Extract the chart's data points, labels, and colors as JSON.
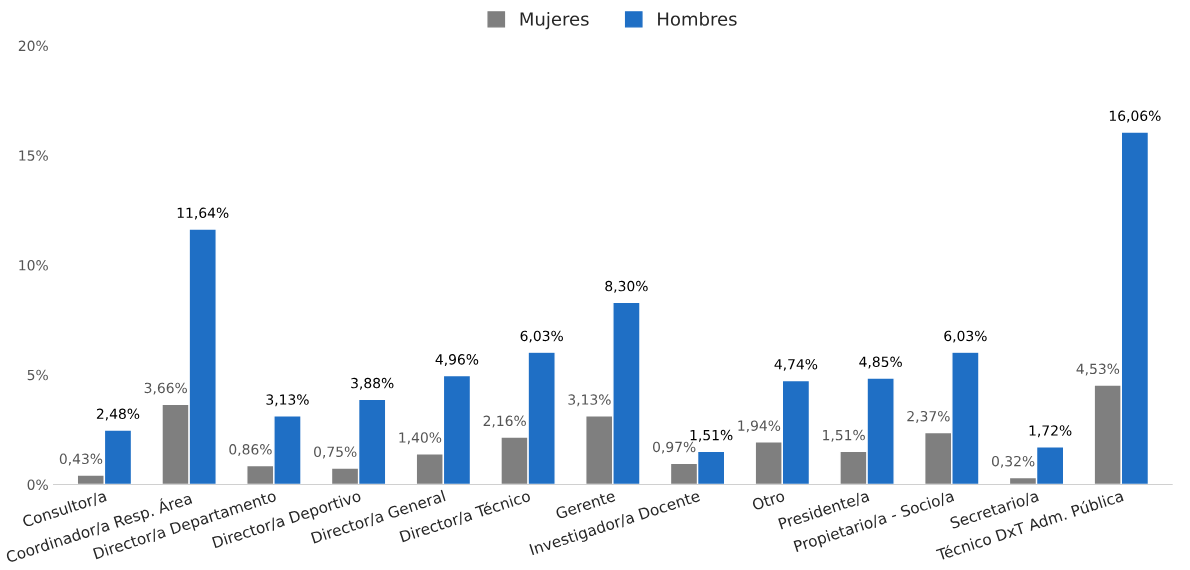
{
  "chart_data": {
    "type": "bar",
    "categories": [
      "Consultor/a",
      "Coordinador/a Resp. Área",
      "Director/a Departamento",
      "Director/a Deportivo",
      "Director/a General",
      "Director/a Técnico",
      "Gerente",
      "Investigador/a Docente",
      "Otro",
      "Presidente/a",
      "Propietario/a - Socio/a",
      "Secretario/a",
      "Técnico DxT Adm. Pública"
    ],
    "series": [
      {
        "name": "Mujeres",
        "color": "#7f7f7f",
        "values": [
          0.43,
          3.66,
          0.86,
          0.75,
          1.4,
          2.16,
          3.13,
          0.97,
          1.94,
          1.51,
          2.37,
          0.32,
          4.53
        ],
        "value_labels": [
          "0,43%",
          "3,66%",
          "0,86%",
          "0,75%",
          "1,40%",
          "2,16%",
          "3,13%",
          "0,97%",
          "1,94%",
          "1,51%",
          "2,37%",
          "0,32%",
          "4,53%"
        ]
      },
      {
        "name": "Hombres",
        "color": "#1f6fc5",
        "values": [
          2.48,
          11.64,
          3.13,
          3.88,
          4.96,
          6.03,
          8.3,
          1.51,
          4.74,
          4.85,
          6.03,
          1.72,
          16.06
        ],
        "value_labels": [
          "2,48%",
          "11,64%",
          "3,13%",
          "3,88%",
          "4,96%",
          "6,03%",
          "8,30%",
          "1,51%",
          "4,74%",
          "4,85%",
          "6,03%",
          "1,72%",
          "16,06%"
        ]
      }
    ],
    "ylim": [
      0,
      20
    ],
    "yticks": [
      {
        "value": 0,
        "label": "0%"
      },
      {
        "value": 5,
        "label": "5%"
      },
      {
        "value": 10,
        "label": "10%"
      },
      {
        "value": 15,
        "label": "15%"
      },
      {
        "value": 20,
        "label": "20%"
      }
    ],
    "grid": false,
    "legend": "top"
  }
}
